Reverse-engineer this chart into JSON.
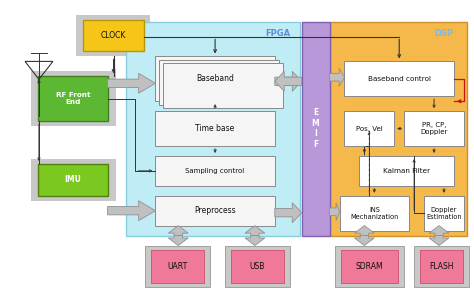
{
  "figsize": [
    4.74,
    2.91
  ],
  "dpi": 100,
  "bg_color": "#ffffff",
  "xlim": [
    0,
    47.4
  ],
  "ylim": [
    0,
    29.1
  ],
  "colors": {
    "clock": "#f5c518",
    "clock_edge": "#b8960a",
    "clock_surround": "#c8c8c8",
    "rf_front": "#5cb832",
    "rf_surround": "#c8c8c8",
    "imu": "#7bc820",
    "imu_surround": "#c8c8c8",
    "fpga_bg": "#c0ecf5",
    "fpga_label": "#5b8fd4",
    "fpga_border": "#8acedd",
    "dsp_bg": "#f5b84a",
    "dsp_label": "#7fb8e8",
    "dsp_border": "#d09030",
    "emif_bg": "#b898d8",
    "emif_border": "#8060b0",
    "white_box": "#ffffff",
    "white_box_edge": "#888888",
    "pink_box": "#f07898",
    "pink_edge": "#d05878",
    "gray_surround": "#c8c8c8",
    "gray_surround_edge": "#a0a0a0",
    "fat_arrow": "#c0c0c0",
    "fat_arrow_edge": "#909090",
    "line_dark": "#333333",
    "red_line": "#cc1111"
  }
}
